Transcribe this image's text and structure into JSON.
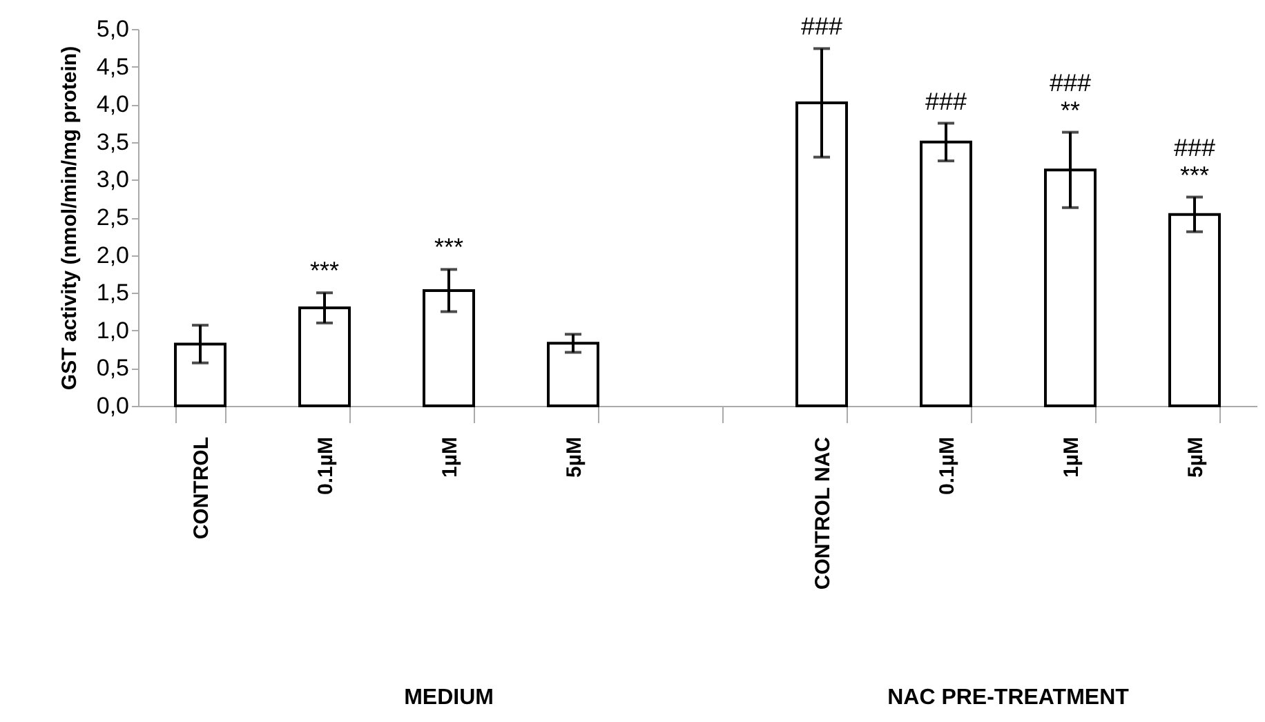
{
  "chart_data": {
    "type": "bar",
    "ylabel": "GST activity (nmol/min/mg protein)",
    "categories": [
      "CONTROL",
      "0.1µM",
      "1µM",
      "5µM",
      null,
      "CONTROL NAC",
      "0.1µM",
      "1µM",
      "5µM"
    ],
    "values": [
      0.82,
      1.3,
      1.53,
      0.83,
      null,
      4.02,
      3.5,
      3.13,
      2.54
    ],
    "errors": [
      0.25,
      0.2,
      0.28,
      0.12,
      null,
      0.72,
      0.25,
      0.5,
      0.23
    ],
    "color": "#ffffff",
    "ylim": [
      0,
      5
    ],
    "yticks": [
      {
        "value": 0,
        "label": "0,0"
      },
      {
        "value": 0.5,
        "label": "0,5"
      },
      {
        "value": 1,
        "label": "1,0"
      },
      {
        "value": 1.5,
        "label": "1,5"
      },
      {
        "value": 2,
        "label": "2,0"
      },
      {
        "value": 2.5,
        "label": "2,5"
      },
      {
        "value": 3,
        "label": "3,0"
      },
      {
        "value": 3.5,
        "label": "3,5"
      },
      {
        "value": 4,
        "label": "4,0"
      },
      {
        "value": 4.5,
        "label": "4,5"
      },
      {
        "value": 5,
        "label": "5,0"
      }
    ],
    "grid": false,
    "annotations": [
      {
        "text": "***",
        "x": "0.1µM",
        "y": 1.5
      },
      {
        "text": "***",
        "x": "1µM",
        "y": 1.81
      },
      {
        "text": "###",
        "x": "CONTROL NAC",
        "y": 4.74
      },
      "###",
      "**",
      "###",
      "***",
      "###",
      {
        "text": "MEDIUM"
      },
      {
        "text": "NAC PRE-TREATMENT"
      }
    ]
  }
}
